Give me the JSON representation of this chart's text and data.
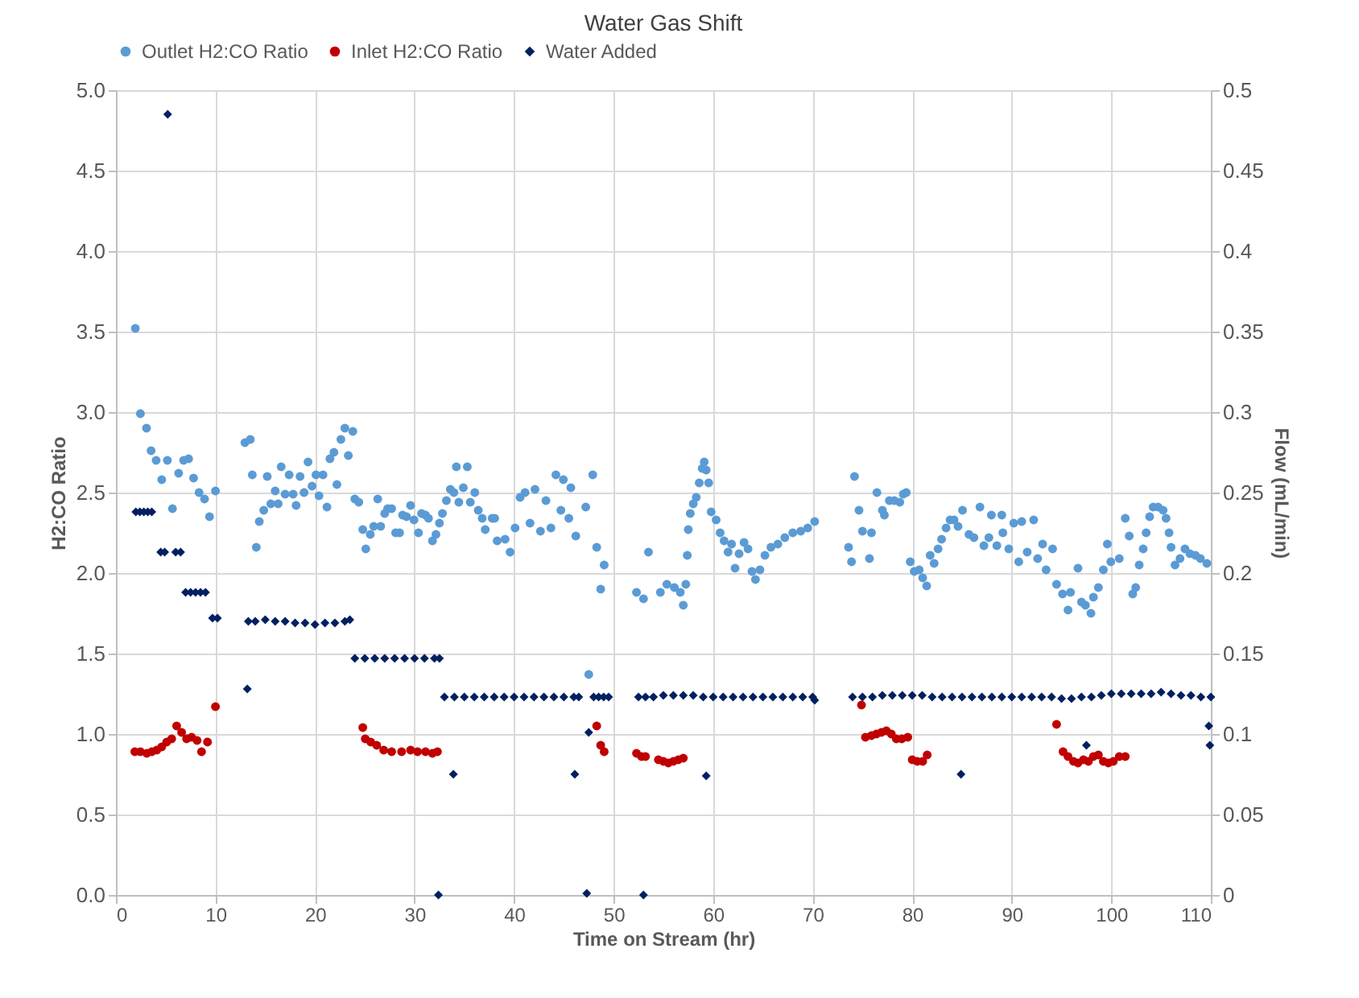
{
  "chart_data": {
    "type": "scatter",
    "title": "Water Gas Shift",
    "xlabel": "Time on Stream (hr)",
    "ylabel": "H2:CO Ratio",
    "y2label": "Flow (mL/min)",
    "xlim": [
      0,
      110
    ],
    "xticks": [
      0,
      10,
      20,
      30,
      40,
      50,
      60,
      70,
      80,
      90,
      100,
      110
    ],
    "ylim": [
      0,
      5
    ],
    "yticks": [
      {
        "value": 0,
        "label": "0.0"
      },
      0.5,
      {
        "value": 1,
        "label": "1.0"
      },
      1.5,
      {
        "value": 2,
        "label": "2.0"
      },
      2.5,
      {
        "value": 3,
        "label": "3.0"
      },
      3.5,
      {
        "value": 4,
        "label": "4.0"
      },
      4.5,
      {
        "value": 5,
        "label": "5.0"
      }
    ],
    "y2lim": [
      0,
      0.5
    ],
    "y2ticks": [
      0,
      0.05,
      0.1,
      0.15,
      0.2,
      0.25,
      0.3,
      0.35,
      0.4,
      0.45,
      0.5
    ],
    "grid": true,
    "legend": "top",
    "series": [
      {
        "name": "Outlet H2:CO Ratio",
        "color": "#5b9bd5",
        "marker": "circle",
        "x": [
          1.95,
          2.46,
          3.07,
          3.53,
          4.04,
          4.6,
          5.17,
          5.68,
          6.3,
          6.8,
          7.3,
          7.8,
          8.35,
          8.9,
          9.4,
          10.0,
          12.96,
          13.5,
          13.7,
          14.1,
          14.4,
          14.85,
          15.2,
          15.56,
          16.0,
          16.3,
          16.6,
          17.0,
          17.4,
          17.8,
          18.1,
          18.5,
          18.9,
          19.3,
          19.7,
          20.1,
          20.4,
          20.8,
          21.2,
          21.5,
          21.9,
          22.2,
          22.6,
          23.0,
          23.35,
          23.8,
          24.0,
          24.4,
          24.8,
          25.1,
          25.55,
          25.9,
          26.3,
          26.6,
          27.0,
          27.3,
          27.7,
          28.1,
          28.5,
          28.8,
          29.2,
          29.6,
          29.95,
          30.4,
          30.7,
          31.1,
          31.4,
          31.8,
          32.15,
          32.5,
          32.8,
          33.2,
          33.6,
          33.95,
          34.2,
          34.45,
          34.9,
          35.3,
          35.6,
          36.05,
          36.4,
          36.8,
          37.1,
          37.8,
          38.3,
          38.05,
          39.1,
          39.6,
          40.1,
          40.6,
          41.1,
          41.6,
          42.1,
          42.65,
          43.2,
          43.7,
          44.2,
          44.7,
          44.95,
          45.5,
          45.7,
          46.2,
          47.2,
          47.5,
          47.9,
          48.3,
          48.7,
          49.05,
          52.3,
          53.0,
          53.5,
          54.7,
          55.35,
          56.1,
          56.7,
          57.0,
          57.25,
          57.4,
          57.5,
          57.7,
          58.0,
          58.3,
          58.6,
          58.9,
          59.1,
          59.3,
          59.55,
          59.8,
          60.3,
          60.7,
          61.1,
          61.5,
          61.85,
          62.2,
          62.6,
          63.1,
          63.5,
          63.9,
          64.25,
          64.7,
          65.2,
          65.8,
          66.5,
          67.2,
          68.0,
          68.8,
          69.5,
          70.2,
          73.6,
          73.9,
          74.2,
          74.65,
          75.0,
          75.7,
          75.9,
          76.45,
          77.0,
          77.2,
          77.7,
          78.2,
          78.75,
          79.1,
          79.4,
          79.8,
          80.2,
          80.7,
          81.05,
          81.45,
          81.8,
          82.2,
          82.6,
          82.95,
          83.4,
          83.8,
          84.2,
          84.6,
          85.05,
          85.7,
          86.2,
          86.8,
          87.2,
          87.7,
          87.95,
          88.5,
          89.0,
          89.1,
          89.7,
          90.2,
          90.7,
          91.0,
          91.55,
          92.2,
          92.6,
          93.1,
          93.45,
          94.1,
          94.5,
          95.1,
          95.65,
          95.9,
          96.65,
          97.0,
          97.4,
          97.95,
          98.2,
          98.7,
          99.2,
          99.6,
          99.95,
          100.8,
          101.4,
          101.8,
          102.15,
          102.45,
          102.8,
          103.2,
          103.5,
          103.85,
          104.2,
          104.7,
          105.2,
          105.5,
          105.8,
          106.0,
          106.4,
          106.9,
          107.4,
          107.9,
          108.45,
          108.95,
          109.6
        ],
        "values": [
          3.52,
          2.99,
          2.9,
          2.76,
          2.7,
          2.58,
          2.7,
          2.4,
          2.62,
          2.7,
          2.71,
          2.59,
          2.5,
          2.46,
          2.35,
          2.51,
          2.81,
          2.83,
          2.61,
          2.16,
          2.32,
          2.39,
          2.6,
          2.43,
          2.51,
          2.43,
          2.66,
          2.49,
          2.61,
          2.49,
          2.42,
          2.6,
          2.5,
          2.69,
          2.54,
          2.61,
          2.48,
          2.61,
          2.41,
          2.71,
          2.75,
          2.55,
          2.83,
          2.9,
          2.73,
          2.88,
          2.46,
          2.44,
          2.27,
          2.15,
          2.24,
          2.29,
          2.46,
          2.29,
          2.37,
          2.4,
          2.4,
          2.25,
          2.25,
          2.36,
          2.35,
          2.42,
          2.33,
          2.25,
          2.37,
          2.36,
          2.34,
          2.2,
          2.24,
          2.31,
          2.37,
          2.45,
          2.52,
          2.5,
          2.66,
          2.44,
          2.53,
          2.66,
          2.44,
          2.5,
          2.39,
          2.34,
          2.27,
          2.34,
          2.2,
          2.34,
          2.21,
          2.13,
          2.28,
          2.47,
          2.5,
          2.31,
          2.52,
          2.26,
          2.45,
          2.28,
          2.61,
          2.39,
          2.58,
          2.34,
          2.53,
          2.23,
          2.41,
          1.37,
          2.61,
          2.16,
          1.9,
          2.05,
          1.88,
          1.84,
          2.13,
          1.88,
          1.93,
          1.91,
          1.88,
          1.8,
          1.93,
          2.11,
          2.27,
          2.37,
          2.43,
          2.47,
          2.56,
          2.65,
          2.69,
          2.64,
          2.56,
          2.38,
          2.33,
          2.25,
          2.2,
          2.13,
          2.18,
          2.03,
          2.12,
          2.19,
          2.15,
          2.01,
          1.96,
          2.02,
          2.11,
          2.16,
          2.18,
          2.22,
          2.25,
          2.26,
          2.28,
          2.32,
          2.16,
          2.07,
          2.6,
          2.39,
          2.26,
          2.09,
          2.25,
          2.5,
          2.39,
          2.36,
          2.45,
          2.45,
          2.44,
          2.49,
          2.5,
          2.07,
          2.01,
          2.02,
          1.97,
          1.92,
          2.11,
          2.06,
          2.15,
          2.21,
          2.28,
          2.33,
          2.33,
          2.29,
          2.39,
          2.24,
          2.22,
          2.41,
          2.17,
          2.22,
          2.36,
          2.17,
          2.36,
          2.25,
          2.15,
          2.31,
          2.07,
          2.32,
          2.13,
          2.33,
          2.09,
          2.18,
          2.02,
          2.15,
          1.93,
          1.87,
          1.77,
          1.88,
          2.03,
          1.82,
          1.8,
          1.75,
          1.85,
          1.91,
          2.02,
          2.18,
          2.07,
          2.09,
          2.34,
          2.23,
          1.87,
          1.91,
          2.05,
          2.15,
          2.25,
          2.35,
          2.41,
          2.41,
          2.39,
          2.34,
          2.25,
          2.16,
          2.05,
          2.09,
          2.15,
          2.12,
          2.11,
          2.09,
          2.06
        ]
      },
      {
        "name": "Inlet H2:CO Ratio",
        "color": "#c00000",
        "marker": "circle",
        "x": [
          1.9,
          2.45,
          3.1,
          3.6,
          4.1,
          4.6,
          5.1,
          5.6,
          6.1,
          6.6,
          7.1,
          7.6,
          8.15,
          8.6,
          9.2,
          10.0,
          24.8,
          25.05,
          25.6,
          26.2,
          26.9,
          27.7,
          28.7,
          29.6,
          30.3,
          31.1,
          31.8,
          32.3,
          48.3,
          48.7,
          49.05,
          52.3,
          52.8,
          53.2,
          54.5,
          55.0,
          55.5,
          56.0,
          56.5,
          57.0,
          74.9,
          75.3,
          75.9,
          76.4,
          76.9,
          77.4,
          77.9,
          78.4,
          78.95,
          79.55,
          80.0,
          80.5,
          81.05,
          81.5,
          94.5,
          95.15,
          95.65,
          96.2,
          96.65,
          97.2,
          97.7,
          98.2,
          98.7,
          99.2,
          99.7,
          100.2,
          100.8,
          101.4
        ],
        "values": [
          0.89,
          0.89,
          0.88,
          0.89,
          0.9,
          0.92,
          0.95,
          0.97,
          1.05,
          1.01,
          0.97,
          0.98,
          0.96,
          0.89,
          0.95,
          1.17,
          1.04,
          0.97,
          0.95,
          0.93,
          0.9,
          0.89,
          0.89,
          0.9,
          0.89,
          0.89,
          0.88,
          0.89,
          1.05,
          0.93,
          0.89,
          0.88,
          0.86,
          0.86,
          0.84,
          0.83,
          0.82,
          0.83,
          0.84,
          0.85,
          1.18,
          0.98,
          0.99,
          1.0,
          1.01,
          1.02,
          1.0,
          0.97,
          0.97,
          0.98,
          0.84,
          0.83,
          0.83,
          0.87,
          1.06,
          0.89,
          0.86,
          0.83,
          0.82,
          0.84,
          0.83,
          0.86,
          0.87,
          0.83,
          0.82,
          0.83,
          0.86,
          0.86
        ]
      },
      {
        "name": "Water Added",
        "color": "#002060",
        "marker": "diamond",
        "axis": "y2",
        "x": [
          2.0,
          2.4,
          2.8,
          3.2,
          3.6,
          4.5,
          4.9,
          5.2,
          6.0,
          6.5,
          7.0,
          7.5,
          8.0,
          8.5,
          9.0,
          9.7,
          10.2,
          13.2,
          13.3,
          14,
          15,
          16,
          17,
          18,
          19,
          20,
          21,
          22,
          23,
          23.5,
          24,
          25,
          26,
          27,
          28,
          29,
          30,
          31,
          32,
          32.5,
          32.4,
          33,
          34,
          35,
          36,
          37,
          38,
          39,
          40,
          41,
          42,
          43,
          44,
          45,
          46,
          46.5,
          48,
          48.5,
          49,
          49.5,
          33.9,
          46.1,
          47.5,
          47.3,
          52.5,
          53.2,
          54,
          55,
          56,
          57,
          58,
          59,
          60,
          61,
          62,
          63,
          64,
          65,
          66,
          67,
          68,
          69,
          70,
          70.2,
          53.0,
          59.3,
          74,
          75,
          76,
          77,
          78,
          79,
          80,
          81,
          82,
          83,
          84,
          85,
          86,
          87,
          88,
          89,
          90,
          91,
          92,
          93,
          94,
          95,
          96,
          97,
          98,
          99,
          100,
          101,
          102,
          103,
          104,
          105,
          106,
          107,
          108,
          109,
          110,
          84.9,
          97.5,
          109.8,
          109.9
        ],
        "values": [
          0.238,
          0.238,
          0.238,
          0.238,
          0.238,
          0.213,
          0.213,
          0.485,
          0.213,
          0.213,
          0.188,
          0.188,
          0.188,
          0.188,
          0.188,
          0.172,
          0.172,
          0.128,
          0.17,
          0.17,
          0.171,
          0.17,
          0.17,
          0.169,
          0.169,
          0.168,
          0.169,
          0.169,
          0.17,
          0.171,
          0.147,
          0.147,
          0.147,
          0.147,
          0.147,
          0.147,
          0.147,
          0.147,
          0.147,
          0.147,
          0.0,
          0.123,
          0.123,
          0.123,
          0.123,
          0.123,
          0.123,
          0.123,
          0.123,
          0.123,
          0.123,
          0.123,
          0.123,
          0.123,
          0.123,
          0.123,
          0.123,
          0.123,
          0.123,
          0.123,
          0.075,
          0.075,
          0.101,
          0.001,
          0.123,
          0.123,
          0.123,
          0.124,
          0.124,
          0.124,
          0.124,
          0.123,
          0.123,
          0.123,
          0.123,
          0.123,
          0.123,
          0.123,
          0.123,
          0.123,
          0.123,
          0.123,
          0.123,
          0.121,
          0.0,
          0.074,
          0.123,
          0.123,
          0.123,
          0.124,
          0.124,
          0.124,
          0.124,
          0.124,
          0.123,
          0.123,
          0.123,
          0.123,
          0.123,
          0.123,
          0.123,
          0.123,
          0.123,
          0.123,
          0.123,
          0.123,
          0.123,
          0.122,
          0.122,
          0.123,
          0.123,
          0.124,
          0.125,
          0.125,
          0.125,
          0.125,
          0.125,
          0.126,
          0.125,
          0.124,
          0.124,
          0.123,
          0.123,
          0.075,
          0.093,
          0.105,
          0.093
        ]
      }
    ]
  }
}
